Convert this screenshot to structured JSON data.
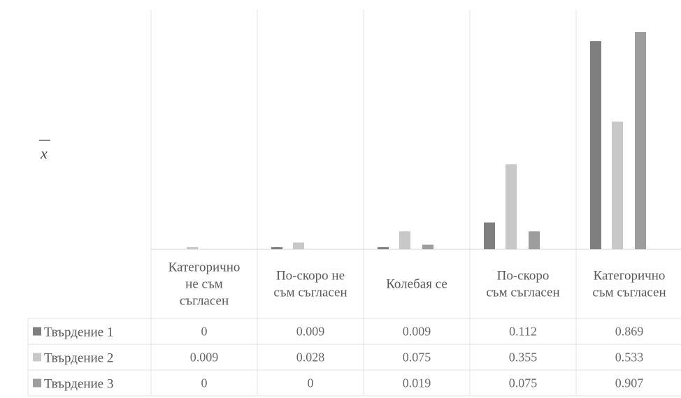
{
  "chart_data": {
    "type": "bar",
    "ylabel": "x",
    "ylabel_overline": true,
    "categories": [
      [
        "Категорично",
        "не съм",
        "съгласен"
      ],
      [
        "По-скоро не",
        "съм съгласен"
      ],
      [
        "Колебая се"
      ],
      [
        "По-скоро",
        "съм съгласен"
      ],
      [
        "Категорично",
        "съм съгласен"
      ]
    ],
    "series": [
      {
        "name": "Твърдение 1",
        "color": "#7f7f7f",
        "values": [
          0,
          0.009,
          0.009,
          0.112,
          0.869
        ],
        "labels": [
          "0",
          "0.009",
          "0.009",
          "0.112",
          "0.869"
        ]
      },
      {
        "name": "Твърдение 2",
        "color": "#c8c8c8",
        "values": [
          0.009,
          0.028,
          0.075,
          0.355,
          0.533
        ],
        "labels": [
          "0.009",
          "0.028",
          "0.075",
          "0.355",
          "0.533"
        ]
      },
      {
        "name": "Твърдение 3",
        "color": "#9d9d9d",
        "values": [
          0,
          0,
          0.019,
          0.075,
          0.907
        ],
        "labels": [
          "0",
          "0",
          "0.019",
          "0.075",
          "0.907"
        ]
      }
    ],
    "ylim": [
      0,
      0.907
    ],
    "grid": false,
    "legend": "data-table-left"
  }
}
